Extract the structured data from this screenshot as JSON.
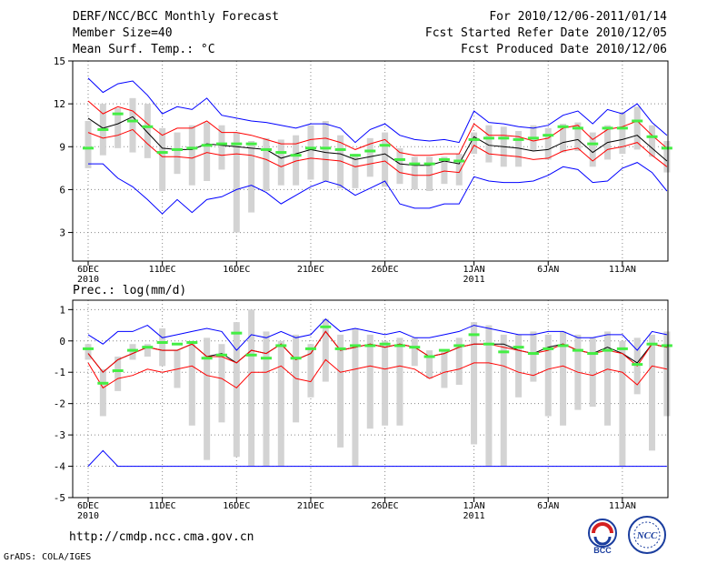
{
  "header": {
    "title": "DERF/NCC/BCC Monthly Forecast",
    "member_size": "Member Size=40",
    "variable1": "Mean Surf. Temp.: °C",
    "period": "For 2010/12/06-2011/01/14",
    "started": "Fcst Started Refer Date 2010/12/05",
    "produced": "Fcst Produced Date 2010/12/06"
  },
  "footer": {
    "url": "http://cmdp.ncc.cma.gov.cn",
    "credit": "GrADS: COLA/IGES",
    "logo1_text": "BCC",
    "logo2_text": "NCC"
  },
  "x_ticks": [
    {
      "label": "6DEC",
      "sub": "2010",
      "day": 0
    },
    {
      "label": "11DEC",
      "sub": "",
      "day": 5
    },
    {
      "label": "16DEC",
      "sub": "",
      "day": 10
    },
    {
      "label": "21DEC",
      "sub": "",
      "day": 15
    },
    {
      "label": "26DEC",
      "sub": "",
      "day": 20
    },
    {
      "label": "1JAN",
      "sub": "2011",
      "day": 26
    },
    {
      "label": "6JAN",
      "sub": "",
      "day": 31
    },
    {
      "label": "11JAN",
      "sub": "",
      "day": 36
    }
  ],
  "chart_data": [
    {
      "type": "line",
      "title": "Mean Surf. Temp.: °C",
      "ylabel": "°C",
      "ylim": [
        1,
        15
      ],
      "yticks": [
        3,
        6,
        9,
        12,
        15
      ],
      "ytick_labels": [
        "3",
        "6",
        "9",
        "12",
        "15"
      ],
      "grid": true,
      "x": [
        0,
        1,
        2,
        3,
        4,
        5,
        6,
        7,
        8,
        9,
        10,
        11,
        12,
        13,
        14,
        15,
        16,
        17,
        18,
        19,
        20,
        21,
        22,
        23,
        24,
        25,
        26,
        27,
        28,
        29,
        30,
        31,
        32,
        33,
        34,
        35,
        36,
        37,
        38,
        39
      ],
      "series": [
        {
          "name": "ensemble max",
          "color": "#0000ff",
          "values": [
            13.8,
            12.8,
            13.4,
            13.6,
            12.6,
            11.3,
            11.8,
            11.6,
            12.4,
            11.2,
            11.0,
            10.8,
            10.7,
            10.5,
            10.3,
            10.6,
            10.6,
            10.3,
            9.3,
            10.2,
            10.6,
            9.8,
            9.5,
            9.4,
            9.5,
            9.3,
            11.5,
            10.7,
            10.6,
            10.4,
            10.3,
            10.5,
            11.2,
            11.5,
            10.6,
            11.6,
            11.3,
            12.0,
            10.7,
            9.8
          ]
        },
        {
          "name": "upper bound",
          "color": "#ff0000",
          "values": [
            12.2,
            11.3,
            11.8,
            11.5,
            10.6,
            9.8,
            10.3,
            10.3,
            10.8,
            10.0,
            10.0,
            9.8,
            9.5,
            9.2,
            9.2,
            9.5,
            9.6,
            9.3,
            8.8,
            9.2,
            9.5,
            8.6,
            8.4,
            8.4,
            8.5,
            8.5,
            10.6,
            9.8,
            9.8,
            9.7,
            9.4,
            9.6,
            10.3,
            10.5,
            9.5,
            10.2,
            10.4,
            10.8,
            9.8,
            8.9
          ]
        },
        {
          "name": "ensemble mean",
          "color": "#000000",
          "values": [
            11.0,
            10.3,
            10.6,
            11.1,
            10.0,
            8.9,
            8.8,
            8.8,
            9.2,
            9.1,
            9.0,
            8.9,
            8.8,
            8.2,
            8.5,
            8.8,
            8.6,
            8.5,
            8.1,
            8.3,
            8.5,
            7.8,
            7.7,
            7.7,
            8.0,
            7.8,
            9.7,
            9.1,
            9.0,
            8.9,
            8.7,
            8.8,
            9.3,
            9.5,
            8.6,
            9.3,
            9.5,
            9.8,
            8.9,
            8.0
          ]
        },
        {
          "name": "lower bound",
          "color": "#ff0000",
          "values": [
            10.0,
            9.6,
            9.8,
            10.2,
            9.2,
            8.3,
            8.3,
            8.2,
            8.6,
            8.4,
            8.5,
            8.4,
            8.1,
            7.6,
            8.0,
            8.2,
            8.1,
            8.0,
            7.6,
            7.8,
            8.0,
            7.2,
            7.0,
            7.0,
            7.3,
            7.2,
            9.1,
            8.5,
            8.4,
            8.3,
            8.1,
            8.2,
            8.7,
            8.9,
            8.0,
            8.8,
            9.0,
            9.3,
            8.4,
            7.6
          ]
        },
        {
          "name": "ensemble min",
          "color": "#0000ff",
          "values": [
            7.8,
            7.8,
            6.8,
            6.2,
            5.3,
            4.3,
            5.3,
            4.4,
            5.3,
            5.5,
            6.0,
            6.3,
            5.8,
            5.0,
            5.6,
            6.2,
            6.6,
            6.3,
            5.6,
            6.1,
            6.6,
            5.0,
            4.7,
            4.7,
            5.0,
            5.0,
            6.9,
            6.6,
            6.5,
            6.5,
            6.6,
            7.0,
            7.6,
            7.4,
            6.5,
            6.6,
            7.5,
            7.9,
            7.2,
            5.9
          ]
        }
      ],
      "bars": {
        "name": "spread",
        "color": "#d3d3d3",
        "low": [
          7.5,
          8.4,
          8.9,
          8.6,
          8.2,
          5.9,
          7.1,
          6.3,
          6.6,
          7.4,
          3.0,
          4.4,
          5.9,
          6.3,
          6.3,
          6.7,
          6.6,
          6.1,
          6.1,
          6.9,
          6.2,
          6.4,
          6.0,
          5.9,
          6.4,
          6.3,
          8.5,
          7.9,
          7.6,
          7.6,
          8.7,
          8.1,
          8.6,
          8.7,
          7.6,
          8.1,
          8.5,
          8.8,
          8.3,
          7.2
        ],
        "high": [
          10.8,
          12.0,
          11.7,
          12.4,
          12.0,
          10.3,
          10.0,
          10.5,
          10.7,
          10.5,
          10.0,
          9.4,
          9.6,
          9.5,
          9.8,
          10.5,
          10.8,
          9.8,
          8.5,
          9.6,
          10.0,
          8.9,
          8.3,
          8.3,
          8.3,
          8.5,
          10.0,
          10.5,
          10.4,
          10.1,
          10.5,
          10.3,
          10.6,
          10.7,
          10.0,
          10.5,
          11.4,
          11.8,
          10.5,
          9.4
        ]
      },
      "markers": {
        "name": "observation",
        "color": "#44ee44",
        "values": [
          8.9,
          10.2,
          11.3,
          10.8,
          10.4,
          8.6,
          8.8,
          8.9,
          9.1,
          9.2,
          9.2,
          9.2,
          8.8,
          8.6,
          8.4,
          8.9,
          8.9,
          8.8,
          8.4,
          8.7,
          9.1,
          8.1,
          7.8,
          7.8,
          8.1,
          8.0,
          9.5,
          9.6,
          9.6,
          9.5,
          9.6,
          9.8,
          10.4,
          10.3,
          9.2,
          10.3,
          10.3,
          10.8,
          9.7,
          8.9
        ]
      }
    },
    {
      "type": "line",
      "title": "Prec.: log(mm/d)",
      "ylabel": "log(mm/d)",
      "ylim": [
        -5,
        1.3
      ],
      "yticks": [
        -5,
        -4,
        -3,
        -2,
        -1,
        0,
        1
      ],
      "ytick_labels": [
        "-5",
        "-4",
        "-3",
        "-2",
        "-1",
        "0",
        "1"
      ],
      "grid": true,
      "x": [
        0,
        1,
        2,
        3,
        4,
        5,
        6,
        7,
        8,
        9,
        10,
        11,
        12,
        13,
        14,
        15,
        16,
        17,
        18,
        19,
        20,
        21,
        22,
        23,
        24,
        25,
        26,
        27,
        28,
        29,
        30,
        31,
        32,
        33,
        34,
        35,
        36,
        37,
        38,
        39
      ],
      "series": [
        {
          "name": "ensemble max",
          "color": "#0000ff",
          "values": [
            0.2,
            -0.1,
            0.3,
            0.3,
            0.5,
            0.1,
            0.2,
            0.3,
            0.4,
            0.3,
            -0.3,
            0.2,
            0.1,
            0.3,
            0.1,
            0.2,
            0.7,
            0.3,
            0.4,
            0.3,
            0.2,
            0.3,
            0.1,
            0.1,
            0.2,
            0.3,
            0.5,
            0.4,
            0.3,
            0.2,
            0.2,
            0.3,
            0.3,
            0.1,
            0.1,
            0.2,
            0.2,
            -0.3,
            0.3,
            0.2
          ]
        },
        {
          "name": "upper bound",
          "color": "#000000",
          "values": [
            -0.4,
            -1.0,
            -0.6,
            -0.4,
            -0.2,
            -0.3,
            -0.3,
            -0.1,
            -0.5,
            -0.4,
            -0.7,
            -0.3,
            -0.4,
            -0.1,
            -0.6,
            -0.4,
            0.3,
            -0.3,
            -0.2,
            -0.1,
            -0.2,
            -0.1,
            -0.2,
            -0.5,
            -0.4,
            -0.2,
            -0.1,
            -0.1,
            -0.1,
            -0.3,
            -0.4,
            -0.2,
            -0.1,
            -0.3,
            -0.4,
            -0.2,
            -0.4,
            -0.7,
            -0.1,
            -0.2
          ]
        },
        {
          "name": "ensemble mean",
          "color": "#ff0000",
          "values": [
            -0.4,
            -1.0,
            -0.6,
            -0.4,
            -0.2,
            -0.3,
            -0.3,
            -0.1,
            -0.5,
            -0.5,
            -0.7,
            -0.3,
            -0.4,
            -0.1,
            -0.6,
            -0.4,
            0.3,
            -0.3,
            -0.2,
            -0.1,
            -0.2,
            -0.1,
            -0.2,
            -0.5,
            -0.4,
            -0.2,
            -0.1,
            -0.1,
            -0.2,
            -0.3,
            -0.4,
            -0.3,
            -0.1,
            -0.3,
            -0.4,
            -0.3,
            -0.4,
            -0.8,
            -0.1,
            -0.2
          ]
        },
        {
          "name": "lower bound",
          "color": "#ff0000",
          "values": [
            -0.7,
            -1.5,
            -1.2,
            -1.1,
            -0.9,
            -1.0,
            -0.9,
            -0.8,
            -1.1,
            -1.2,
            -1.5,
            -1.0,
            -1.0,
            -0.8,
            -1.2,
            -1.3,
            -0.6,
            -1.0,
            -0.9,
            -0.8,
            -0.9,
            -0.8,
            -0.9,
            -1.2,
            -1.0,
            -0.9,
            -0.7,
            -0.7,
            -0.8,
            -1.0,
            -1.1,
            -0.9,
            -0.8,
            -1.0,
            -1.1,
            -0.9,
            -1.0,
            -1.4,
            -0.8,
            -0.9
          ]
        },
        {
          "name": "ensemble min",
          "color": "#0000ff",
          "values": [
            -4.0,
            -3.5,
            -4.0,
            -4.0,
            -4.0,
            -4.0,
            -4.0,
            -4.0,
            -4.0,
            -4.0,
            -4.0,
            -4.0,
            -4.0,
            -4.0,
            -4.0,
            -4.0,
            -4.0,
            -4.0,
            -4.0,
            -4.0,
            -4.0,
            -4.0,
            -4.0,
            -4.0,
            -4.0,
            -4.0,
            -4.0,
            -4.0,
            -4.0,
            -4.0,
            -4.0,
            -4.0,
            -4.0,
            -4.0,
            -4.0,
            -4.0,
            -4.0,
            -4.0,
            -4.0,
            -4.0
          ]
        }
      ],
      "bars": {
        "name": "spread",
        "color": "#d3d3d3",
        "low": [
          -0.6,
          -2.4,
          -1.6,
          -0.6,
          -0.5,
          -0.8,
          -1.5,
          -2.7,
          -3.8,
          -2.6,
          -3.7,
          -4.0,
          -4.0,
          -4.0,
          -2.6,
          -1.8,
          -1.3,
          -3.4,
          -4.0,
          -2.8,
          -2.7,
          -2.7,
          -0.8,
          -1.2,
          -1.5,
          -1.4,
          -3.3,
          -4.0,
          -4.0,
          -1.8,
          -1.3,
          -2.4,
          -2.7,
          -2.2,
          -2.1,
          -2.7,
          -4.0,
          -1.7,
          -3.5,
          -2.4
        ],
        "high": [
          -0.1,
          -0.9,
          -0.5,
          -0.1,
          -0.1,
          0.4,
          -0.3,
          0.0,
          0.1,
          -0.1,
          0.6,
          1.0,
          0.3,
          0.0,
          0.2,
          -0.1,
          0.7,
          0.2,
          0.4,
          0.2,
          0.0,
          0.1,
          0.1,
          -0.3,
          -0.3,
          0.1,
          0.6,
          0.5,
          0.2,
          0.2,
          0.3,
          0.2,
          0.3,
          0.2,
          0.1,
          0.3,
          0.0,
          0.1,
          0.2,
          0.3
        ]
      },
      "markers": {
        "name": "observation",
        "color": "#44ee44",
        "values": [
          -0.25,
          -1.35,
          -0.95,
          -0.3,
          -0.2,
          -0.05,
          -0.1,
          -0.05,
          -0.55,
          -0.45,
          0.25,
          -0.45,
          -0.55,
          -0.15,
          -0.55,
          -0.25,
          0.45,
          -0.25,
          -0.15,
          -0.15,
          -0.1,
          -0.15,
          -0.2,
          -0.5,
          -0.3,
          -0.15,
          0.2,
          -0.1,
          -0.35,
          -0.2,
          -0.4,
          -0.25,
          -0.15,
          -0.3,
          -0.4,
          -0.3,
          -0.25,
          -0.75,
          -0.1,
          -0.15
        ]
      }
    }
  ]
}
